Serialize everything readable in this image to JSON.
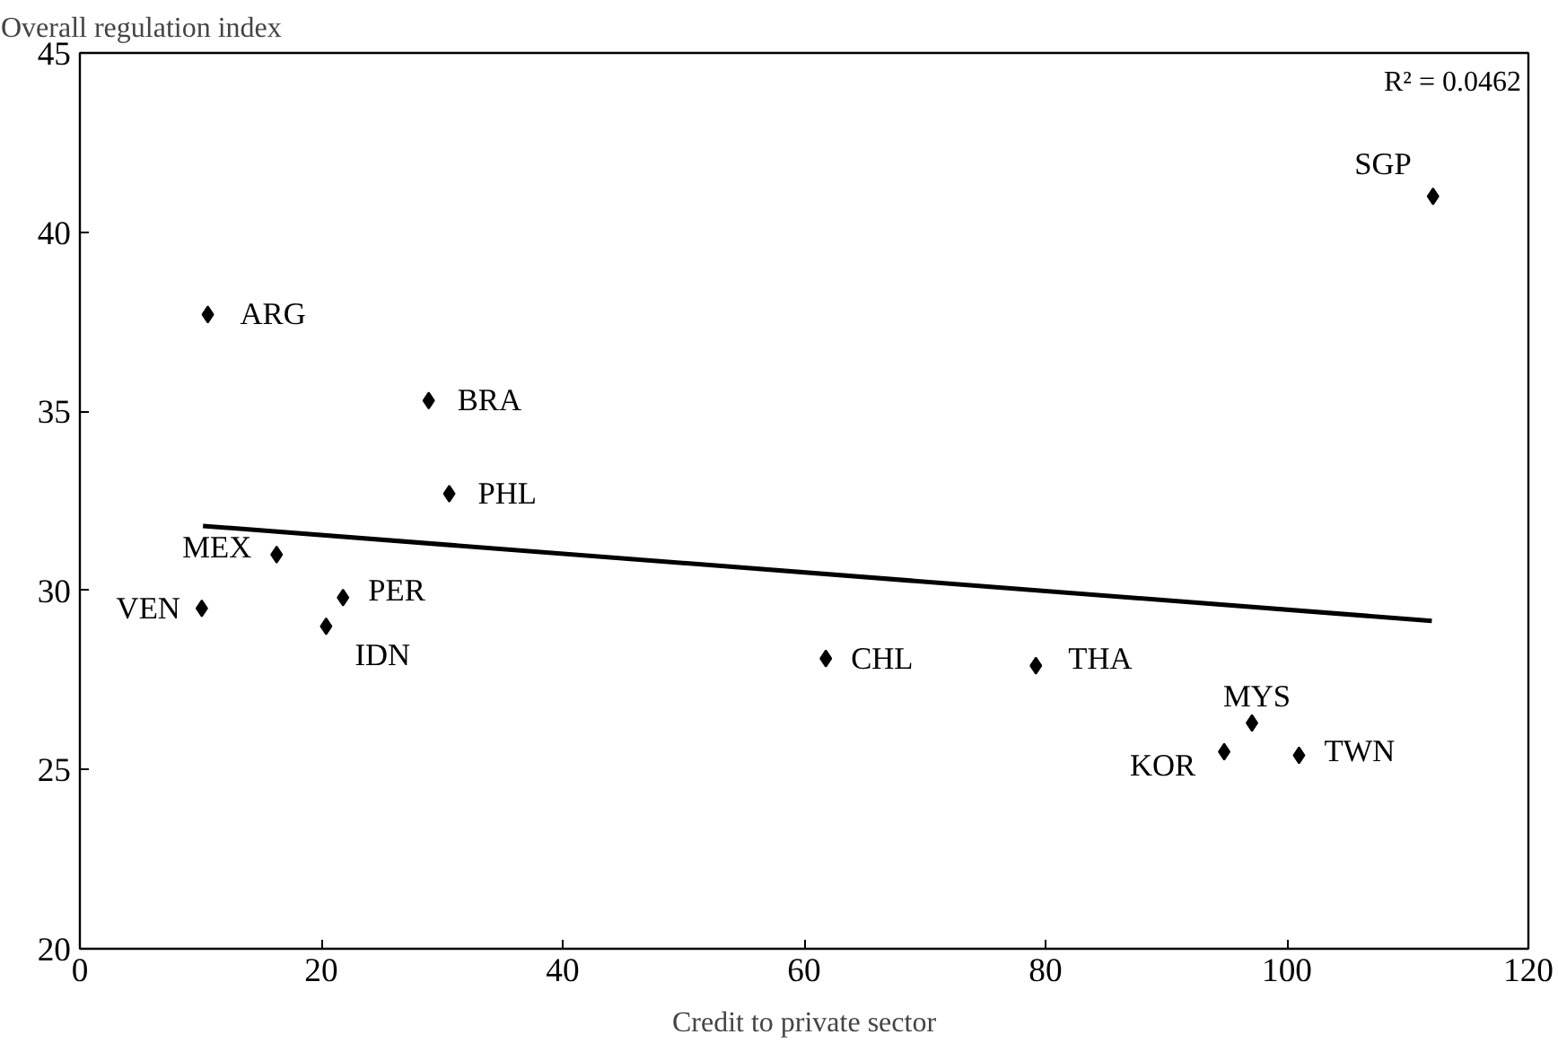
{
  "chart_data": {
    "type": "scatter",
    "xlabel": "Credit to private sector",
    "ylabel": "Overall regulation index",
    "xlim": [
      0,
      120
    ],
    "xticks": [
      0,
      20,
      40,
      60,
      80,
      100,
      120
    ],
    "ylim": [
      20,
      45
    ],
    "yticks": [
      20,
      25,
      30,
      35,
      40,
      45
    ],
    "grid": false,
    "marker": "diamond",
    "series": [
      {
        "color": "#000000",
        "x": [
          10.6,
          28.9,
          30.6,
          16.3,
          10.1,
          21.8,
          20.4,
          61.8,
          79.2,
          97.1,
          94.8,
          101.0,
          112.1
        ],
        "values": [
          37.7,
          35.3,
          32.7,
          31.0,
          29.5,
          29.8,
          29.0,
          28.1,
          27.9,
          26.3,
          25.5,
          25.4,
          41.0
        ]
      },
      {
        "type": "line",
        "color": "#000000",
        "x": [
          10.2,
          112
        ],
        "values": [
          31.8,
          29.15
        ],
        "line_style": "solid",
        "marker": "none"
      }
    ],
    "annotations": [
      {
        "text": "ARG",
        "x": 10.6,
        "y": 37.7
      },
      {
        "text": "BRA",
        "x": 28.9,
        "y": 35.3
      },
      {
        "text": "PHL",
        "x": 30.6,
        "y": 32.7
      },
      {
        "text": "MEX",
        "x": 16.3,
        "y": 31.0
      },
      {
        "text": "VEN",
        "x": 10.1,
        "y": 29.5
      },
      {
        "text": "PER",
        "x": 21.8,
        "y": 29.8
      },
      {
        "text": "IDN",
        "x": 20.4,
        "y": 29.0
      },
      {
        "text": "CHL",
        "x": 61.8,
        "y": 28.1
      },
      {
        "text": "THA",
        "x": 79.2,
        "y": 27.9
      },
      {
        "text": "MYS",
        "x": 97.1,
        "y": 26.3
      },
      {
        "text": "KOR",
        "x": 94.8,
        "y": 25.5
      },
      {
        "text": "TWN",
        "x": 101.0,
        "y": 25.4
      },
      {
        "text": "SGP",
        "x": 112.1,
        "y": 41.0
      },
      "R² = 0.0462"
    ]
  }
}
